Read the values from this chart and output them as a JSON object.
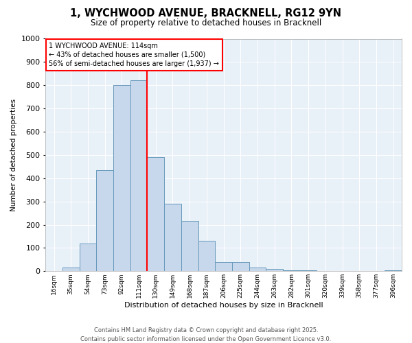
{
  "title": "1, WYCHWOOD AVENUE, BRACKNELL, RG12 9YN",
  "subtitle": "Size of property relative to detached houses in Bracknell",
  "xlabel": "Distribution of detached houses by size in Bracknell",
  "ylabel": "Number of detached properties",
  "categories": [
    "16sqm",
    "35sqm",
    "54sqm",
    "73sqm",
    "92sqm",
    "111sqm",
    "130sqm",
    "149sqm",
    "168sqm",
    "187sqm",
    "206sqm",
    "225sqm",
    "244sqm",
    "263sqm",
    "282sqm",
    "301sqm",
    "320sqm",
    "339sqm",
    "358sqm",
    "377sqm",
    "396sqm"
  ],
  "values": [
    0,
    15,
    120,
    435,
    800,
    820,
    490,
    290,
    215,
    130,
    40,
    40,
    15,
    10,
    5,
    5,
    2,
    1,
    0,
    0,
    5
  ],
  "bar_color": "#c8d8ec",
  "bar_edgecolor": "#6699bb",
  "redline_x": 5.5,
  "redline_label": "1 WYCHWOOD AVENUE: 114sqm",
  "annotation_line1": "← 43% of detached houses are smaller (1,500)",
  "annotation_line2": "56% of semi-detached houses are larger (1,937) →",
  "ylim": [
    0,
    1000
  ],
  "yticks": [
    0,
    100,
    200,
    300,
    400,
    500,
    600,
    700,
    800,
    900,
    1000
  ],
  "bg_color": "#ffffff",
  "plot_bg_color": "#e8f0f8",
  "grid_color": "#ffffff",
  "footnote1": "Contains HM Land Registry data © Crown copyright and database right 2025.",
  "footnote2": "Contains public sector information licensed under the Open Government Licence v3.0."
}
